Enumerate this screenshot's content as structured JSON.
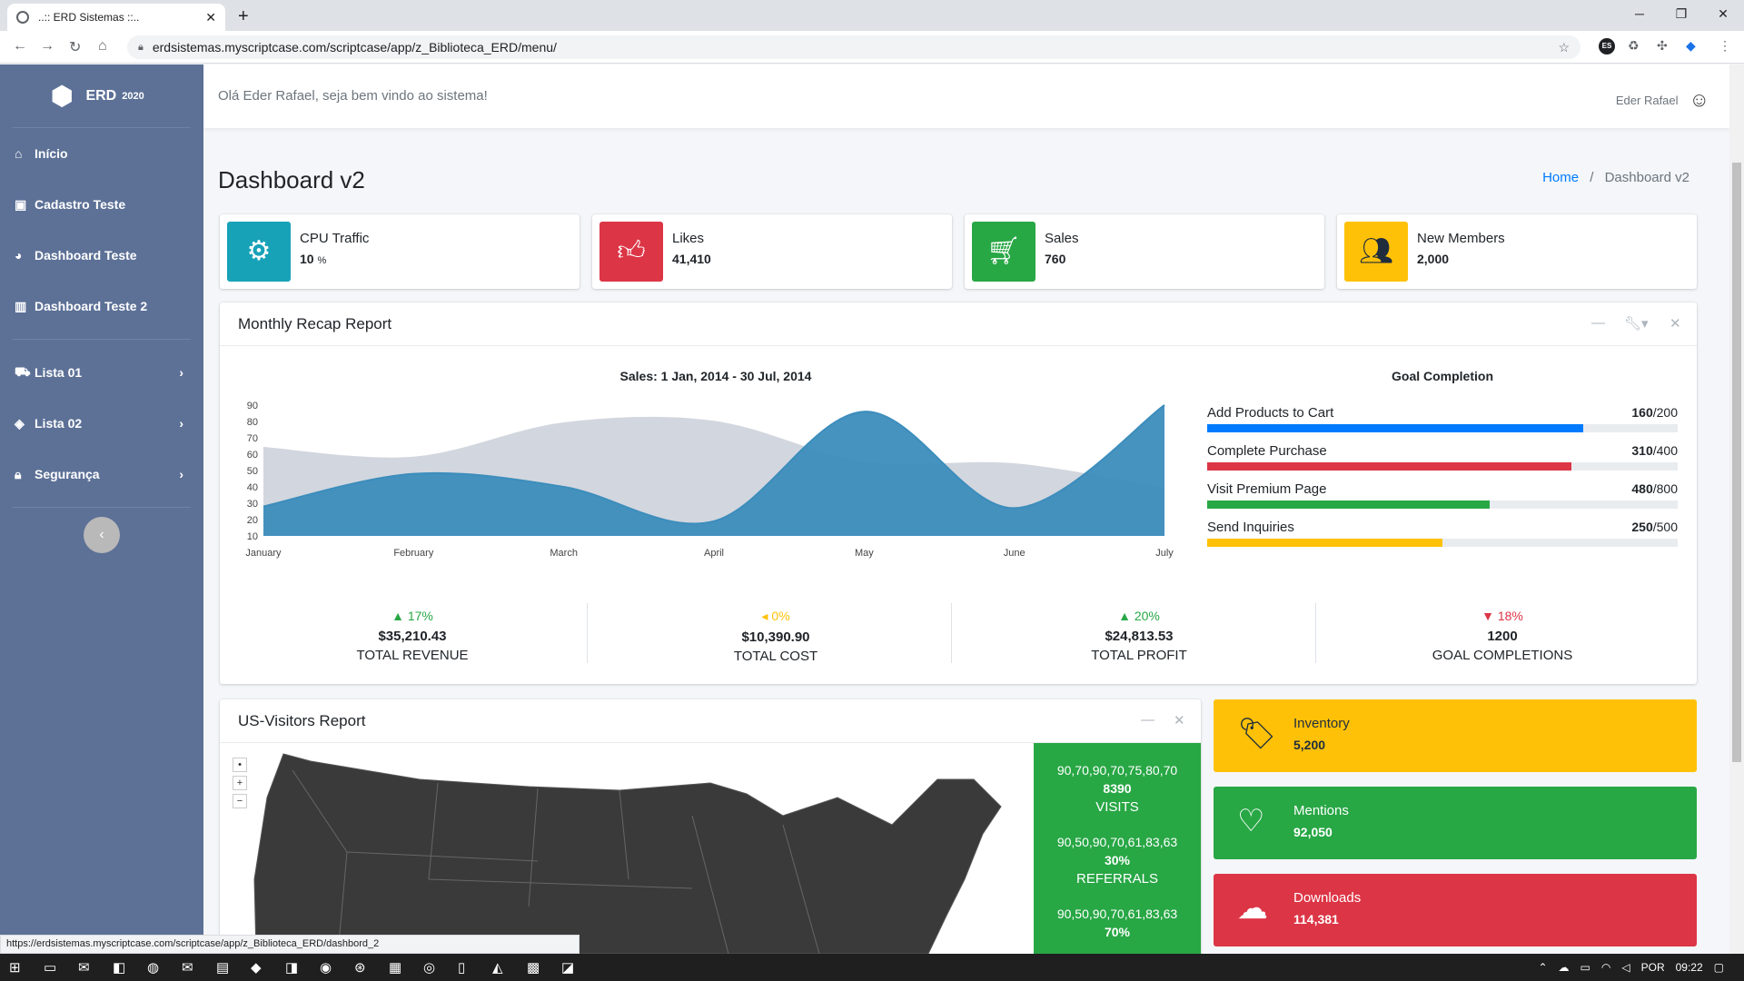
{
  "browser": {
    "tab_title": "..:: ERD Sistemas ::..",
    "url": "erdsistemas.myscriptcase.com/scriptcase/app/z_Biblioteca_ERD/menu/",
    "status_url": "https://erdsistemas.myscriptcase.com/scriptcase/app/z_Biblioteca_ERD/dashbord_2",
    "profile_badge": "ES"
  },
  "sidebar": {
    "brand": "ERD",
    "brand_year": "2020",
    "items": [
      {
        "label": "Início",
        "icon": "home-icon"
      },
      {
        "label": "Cadastro Teste",
        "icon": "id-card-icon"
      },
      {
        "label": "Dashboard Teste",
        "icon": "pie-chart-icon"
      },
      {
        "label": "Dashboard Teste 2",
        "icon": "bar-chart-icon"
      }
    ],
    "groups": [
      {
        "label": "Lista 01",
        "icon": "truck-icon"
      },
      {
        "label": "Lista 02",
        "icon": "tags-icon"
      },
      {
        "label": "Segurança",
        "icon": "lock-icon"
      }
    ]
  },
  "header": {
    "welcome": "Olá Eder Rafael, seja bem vindo ao sistema!",
    "user_name": "Eder Rafael"
  },
  "page": {
    "title": "Dashboard v2",
    "breadcrumb_home": "Home",
    "breadcrumb_current": "Dashboard v2"
  },
  "info_boxes": [
    {
      "label": "CPU Traffic",
      "value": "10",
      "unit": "%",
      "color": "#17a2b8",
      "icon": "gear-icon"
    },
    {
      "label": "Likes",
      "value": "41,410",
      "unit": "",
      "color": "#dc3545",
      "icon": "thumbs-up-icon"
    },
    {
      "label": "Sales",
      "value": "760",
      "unit": "",
      "color": "#28a745",
      "icon": "cart-icon"
    },
    {
      "label": "New Members",
      "value": "2,000",
      "unit": "",
      "color": "#ffc107",
      "icon": "users-icon"
    }
  ],
  "recap": {
    "title": "Monthly Recap Report",
    "goal_title": "Goal Completion",
    "goals": [
      {
        "label": "Add Products to Cart",
        "done": "160",
        "total": "/200",
        "fraction": 0.8,
        "color": "#007bff"
      },
      {
        "label": "Complete Purchase",
        "done": "310",
        "total": "/400",
        "fraction": 0.775,
        "color": "#dc3545"
      },
      {
        "label": "Visit Premium Page",
        "done": "480",
        "total": "/800",
        "fraction": 0.6,
        "color": "#28a745"
      },
      {
        "label": "Send Inquiries",
        "done": "250",
        "total": "/500",
        "fraction": 0.5,
        "color": "#ffc107"
      }
    ],
    "stats": [
      {
        "pct": "17%",
        "trend": "▲",
        "color": "#28a745",
        "amount": "$35,210.43",
        "caption": "TOTAL REVENUE"
      },
      {
        "pct": "0%",
        "trend": "◂",
        "color": "#ffc107",
        "amount": "$10,390.90",
        "caption": "TOTAL COST"
      },
      {
        "pct": "20%",
        "trend": "▲",
        "color": "#28a745",
        "amount": "$24,813.53",
        "caption": "TOTAL PROFIT"
      },
      {
        "pct": "18%",
        "trend": "▼",
        "color": "#dc3545",
        "amount": "1200",
        "caption": "GOAL COMPLETIONS"
      }
    ]
  },
  "chart_data": {
    "type": "area",
    "title": "Sales: 1 Jan, 2014 - 30 Jul, 2014",
    "categories": [
      "January",
      "February",
      "March",
      "April",
      "May",
      "June",
      "July"
    ],
    "ylim": [
      10,
      90
    ],
    "yticks": [
      10,
      20,
      30,
      40,
      50,
      60,
      70,
      80,
      90
    ],
    "series": [
      {
        "values": [
          65,
          59,
          80,
          81,
          56,
          55,
          40
        ],
        "color": "#d2d6de"
      },
      {
        "values": [
          28,
          48,
          40,
          19,
          86,
          27,
          90
        ],
        "color": "#3c8dbc"
      }
    ]
  },
  "visitors": {
    "title": "US-Visitors Report",
    "panel": [
      {
        "spark": "90,70,90,70,75,80,70",
        "value": "8390",
        "caption": "VISITS"
      },
      {
        "spark": "90,50,90,70,61,83,63",
        "value": "30%",
        "caption": "REFERRALS"
      },
      {
        "spark": "90,50,90,70,61,83,63",
        "value": "70%",
        "caption": ""
      }
    ]
  },
  "small_boxes": [
    {
      "label": "Inventory",
      "value": "5,200",
      "color": "#ffc107",
      "icon": "tag-icon",
      "text": "#1f2d3d"
    },
    {
      "label": "Mentions",
      "value": "92,050",
      "color": "#28a745",
      "icon": "heart-icon",
      "text": "#ffffff"
    },
    {
      "label": "Downloads",
      "value": "114,381",
      "color": "#dc3545",
      "icon": "cloud-download-icon",
      "text": "#ffffff"
    }
  ],
  "taskbar": {
    "language": "POR",
    "time": "09:22"
  }
}
